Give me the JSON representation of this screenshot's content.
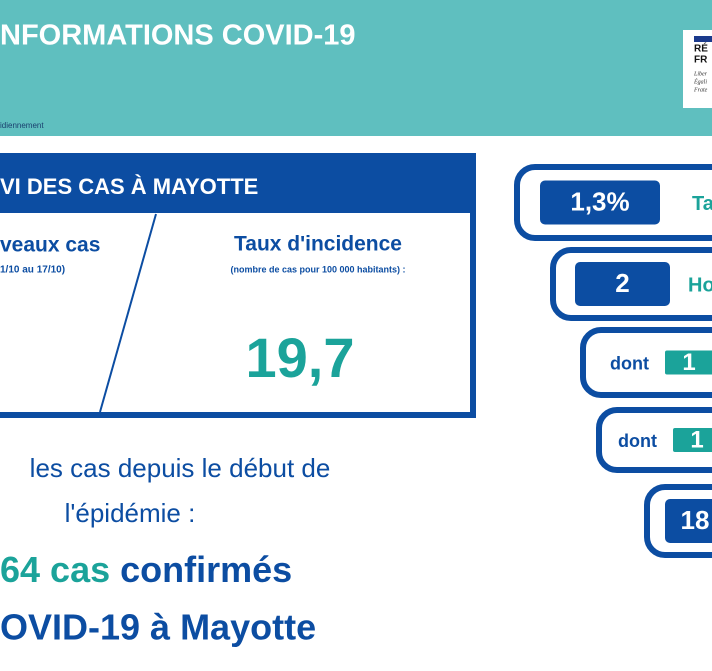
{
  "header": {
    "title": "NFORMATIONS COVID-19",
    "subtitle": "idiennement",
    "logo": [
      "RÉ",
      "FR",
      "Liber",
      "Égali",
      "Frate"
    ]
  },
  "panel": {
    "title": "VI DES CAS À MAYOTTE",
    "left_heading": "veaux cas",
    "left_period": "1/10 au 17/10)",
    "right_heading": "Taux d'incidence",
    "right_note": "(nombre de cas pour 100 000 habitants) :",
    "right_value": "19,7"
  },
  "summary": {
    "line1": "les cas depuis le début de",
    "line2": "l'épidémie :",
    "count": "64 cas",
    "count_suffix": "confirmés",
    "line4": "OVID-19 à Mayotte"
  },
  "indicators": [
    {
      "value": "1,3%",
      "label": "Ta"
    },
    {
      "value": "2",
      "label": "Ho"
    },
    {
      "prefix": "dont",
      "value": "1"
    },
    {
      "prefix": "dont",
      "value": "1"
    },
    {
      "value": "18"
    }
  ]
}
